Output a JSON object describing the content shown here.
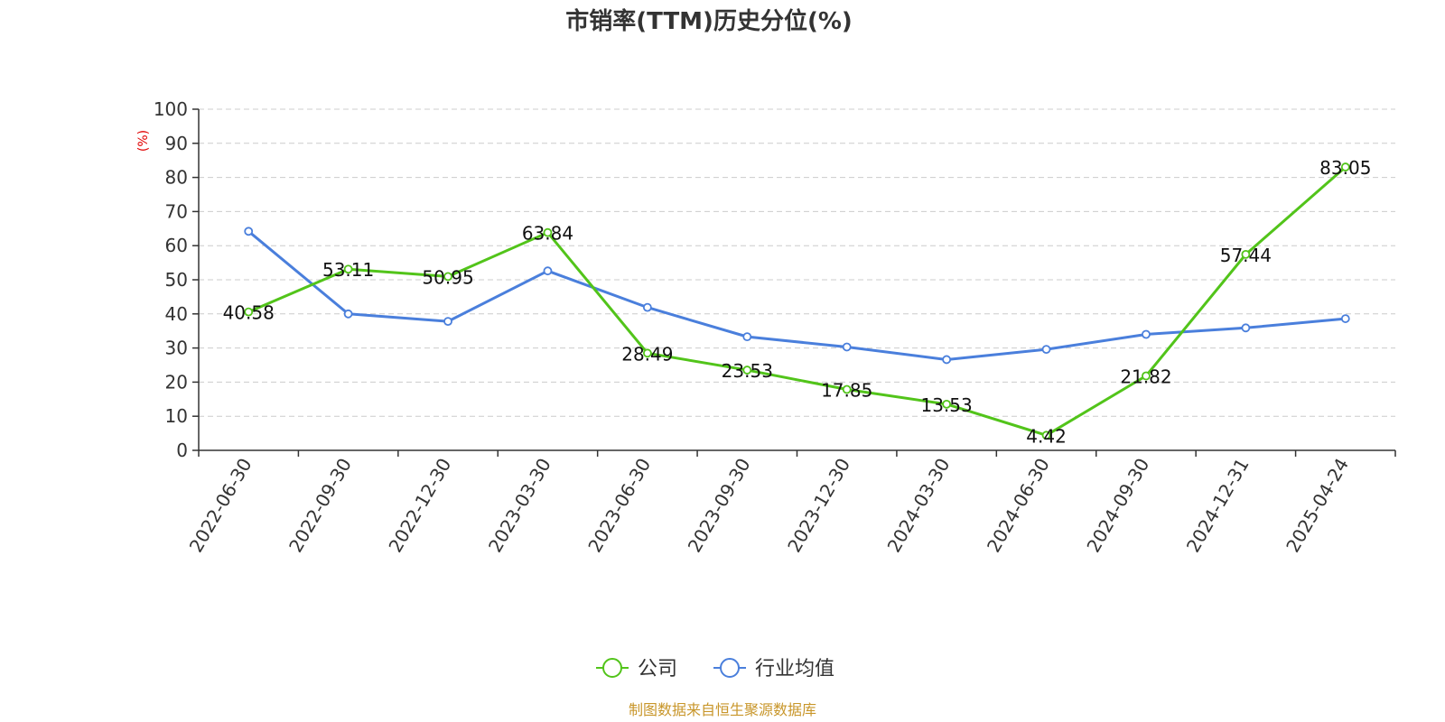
{
  "chart_data": {
    "type": "line",
    "title": "市销率(TTM)历史分位(%)",
    "ylabel": "(%)",
    "xlabel": "",
    "ylim": [
      0,
      100
    ],
    "yticks": [
      0,
      10,
      20,
      30,
      40,
      50,
      60,
      70,
      80,
      90,
      100
    ],
    "categories": [
      "2022-06-30",
      "2022-09-30",
      "2022-12-30",
      "2023-03-30",
      "2023-06-30",
      "2023-09-30",
      "2023-12-30",
      "2024-03-30",
      "2024-06-30",
      "2024-09-30",
      "2024-12-31",
      "2025-04-24"
    ],
    "series": [
      {
        "name": "公司",
        "color": "#52c41a",
        "values": [
          40.58,
          53.11,
          50.95,
          63.84,
          28.49,
          23.53,
          17.85,
          13.53,
          4.42,
          21.82,
          57.44,
          83.05
        ],
        "labels": [
          "40.58",
          "53.11",
          "50.95",
          "63.84",
          "28.49",
          "23.53",
          "17.85",
          "13.53",
          "4.42",
          "21.82",
          "57.44",
          "83.05"
        ]
      },
      {
        "name": "行业均值",
        "color": "#4a7fdc",
        "values": [
          64.2,
          40.0,
          37.8,
          52.6,
          41.9,
          33.3,
          30.3,
          26.6,
          29.6,
          34.0,
          35.9,
          38.6
        ]
      }
    ],
    "grid": true,
    "legend_position": "bottom-center",
    "unit_color": "#e00000"
  },
  "source": {
    "text": "制图数据来自恒生聚源数据库",
    "color": "#c8962a"
  }
}
